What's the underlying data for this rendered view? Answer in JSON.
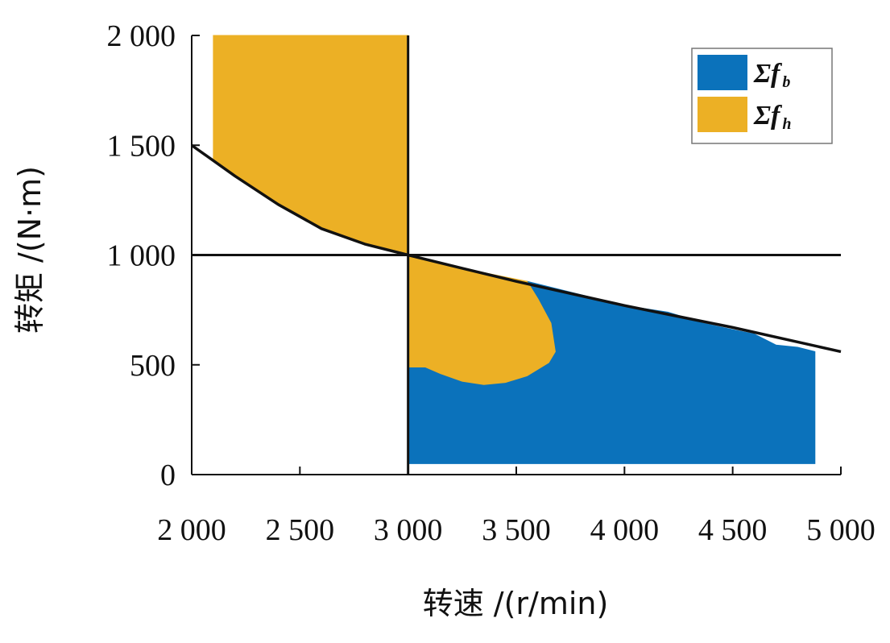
{
  "chart_data": {
    "type": "area",
    "xlabel": "转速 /(r/min)",
    "ylabel": "转矩 /(N·m)",
    "xlim": [
      2000,
      5000
    ],
    "ylim": [
      0,
      2000
    ],
    "x_ticks": [
      2000,
      2500,
      3000,
      3500,
      4000,
      4500,
      5000
    ],
    "y_ticks": [
      0,
      500,
      1000,
      1500,
      2000
    ],
    "x_tick_labels": [
      "2 000",
      "2 500",
      "3 000",
      "3 500",
      "4 000",
      "4 500",
      "5 000"
    ],
    "y_tick_labels": [
      "0",
      "500",
      "1 000",
      "1 500",
      "2 000"
    ],
    "grid": false,
    "legend_position": "top-right",
    "reference_lines": [
      {
        "orientation": "vertical",
        "x": 3000
      },
      {
        "orientation": "horizontal",
        "y": 1000
      }
    ],
    "boundary_curve": {
      "x": [
        2000,
        2200,
        2400,
        2600,
        2800,
        3000,
        3250,
        3500,
        4000,
        4500,
        5000
      ],
      "y": [
        1500,
        1360,
        1230,
        1120,
        1050,
        1000,
        940,
        880,
        770,
        670,
        560
      ]
    },
    "series": [
      {
        "name": "Σf",
        "subscript": "b",
        "color": "#0b72bb",
        "regions": [
          {
            "outline": [
              [
                3000,
                50
              ],
              [
                3000,
                490
              ],
              [
                3080,
                490
              ],
              [
                3150,
                460
              ],
              [
                3250,
                425
              ],
              [
                3350,
                410
              ],
              [
                3450,
                420
              ],
              [
                3550,
                450
              ],
              [
                3650,
                510
              ],
              [
                3680,
                560
              ],
              [
                3660,
                690
              ],
              [
                3600,
                800
              ],
              [
                3550,
                880
              ],
              [
                4000,
                770
              ],
              [
                4200,
                740
              ],
              [
                4300,
                710
              ],
              [
                4360,
                690
              ],
              [
                4500,
                660
              ],
              [
                4600,
                640
              ],
              [
                4700,
                590
              ],
              [
                4800,
                580
              ],
              [
                4880,
                560
              ],
              [
                4880,
                50
              ]
            ]
          }
        ]
      },
      {
        "name": "Σf",
        "subscript": "h",
        "color": "#ecb025",
        "regions": [
          {
            "outline": [
              [
                2100,
                2000
              ],
              [
                3000,
                2000
              ],
              [
                3000,
                1000
              ],
              [
                2800,
                1050
              ],
              [
                2600,
                1120
              ],
              [
                2400,
                1230
              ],
              [
                2200,
                1360
              ],
              [
                2100,
                1430
              ]
            ]
          },
          {
            "outline": [
              [
                3000,
                1000
              ],
              [
                3250,
                940
              ],
              [
                3550,
                880
              ],
              [
                3600,
                800
              ],
              [
                3660,
                690
              ],
              [
                3680,
                560
              ],
              [
                3650,
                510
              ],
              [
                3550,
                450
              ],
              [
                3450,
                420
              ],
              [
                3350,
                410
              ],
              [
                3250,
                425
              ],
              [
                3150,
                460
              ],
              [
                3080,
                490
              ],
              [
                3000,
                490
              ]
            ]
          }
        ]
      }
    ]
  }
}
